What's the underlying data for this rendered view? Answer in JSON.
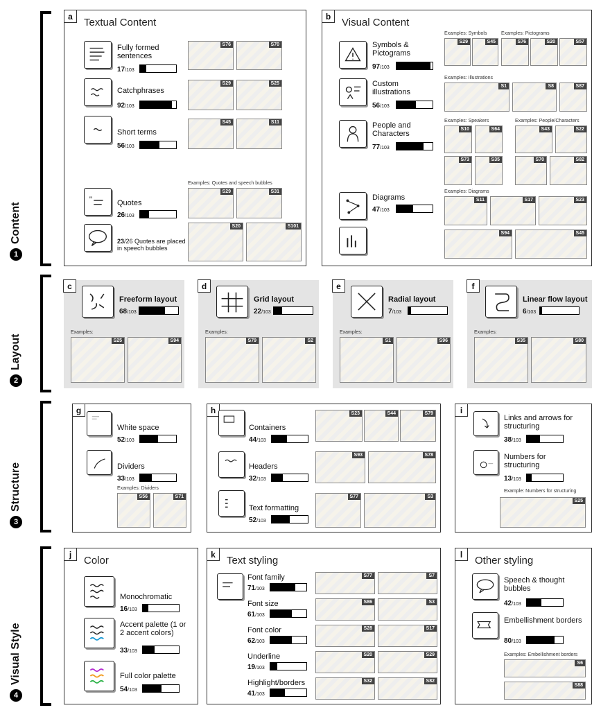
{
  "sections": [
    {
      "num": "1",
      "label": "Content"
    },
    {
      "num": "2",
      "label": "Layout"
    },
    {
      "num": "3",
      "label": "Structure"
    },
    {
      "num": "4",
      "label": "Visual Style"
    }
  ],
  "unit": "/103",
  "panels": {
    "a": {
      "letter": "a",
      "title": "Textual Content",
      "items": [
        {
          "label": "Fully formed sentences",
          "count": "17",
          "value": 17,
          "tags": [
            "S76",
            "S70"
          ]
        },
        {
          "label": "Catchphrases",
          "count": "92",
          "value": 92,
          "tags": [
            "S29",
            "S25"
          ]
        },
        {
          "label": "Short terms",
          "count": "56",
          "value": 56,
          "tags": [
            "S45",
            "S11"
          ]
        },
        {
          "label": "Quotes",
          "count": "26",
          "value": 26,
          "tags": [
            "S29",
            "S31"
          ]
        },
        {
          "label": "",
          "count": "23",
          "value": 23,
          "tags": [
            "S20",
            "S101"
          ]
        }
      ],
      "quotes_example": "Examples: Quotes and speech bubbles",
      "bubble_note": "/26 Quotes are placed in speech bubbles"
    },
    "b": {
      "letter": "b",
      "title": "Visual Content",
      "items": [
        {
          "label": "Symbols & Pictograms",
          "count": "97",
          "value": 97
        },
        {
          "label": "Custom illustrations",
          "count": "56",
          "value": 56
        },
        {
          "label": "People and Characters",
          "count": "77",
          "value": 77
        },
        {
          "label": "Diagrams",
          "count": "47",
          "value": 47
        }
      ],
      "ex_symbols": "Examples: Symbols",
      "ex_pictograms": "Examples: Pictograms",
      "ex_illustrations": "Examples: Illustrations",
      "ex_speakers": "Examples: Speakers",
      "ex_people": "Examples: People/Characters",
      "ex_diagrams": "Examples: Diagrams",
      "tags": [
        "S29",
        "S45",
        "S76",
        "S20",
        "S57",
        "S1",
        "S8",
        "S87",
        "S10",
        "S64",
        "S43",
        "S22",
        "S73",
        "S35",
        "S70",
        "S82",
        "S11",
        "S17",
        "S23",
        "S94",
        "S45"
      ]
    },
    "c": {
      "letter": "c",
      "title": "Freeform layout",
      "count": "68",
      "value": 68,
      "ex": "Examples:",
      "tags": [
        "S25",
        "S94"
      ]
    },
    "d": {
      "letter": "d",
      "title": "Grid layout",
      "count": "22",
      "value": 22,
      "ex": "Examples:",
      "tags": [
        "S79",
        "S2"
      ]
    },
    "e": {
      "letter": "e",
      "title": "Radial layout",
      "count": "7",
      "value": 7,
      "ex": "Examples:",
      "tags": [
        "S1",
        "S96"
      ]
    },
    "f": {
      "letter": "f",
      "title": "Linear flow layout",
      "count": "6",
      "value": 6,
      "ex": "Examples:",
      "tags": [
        "S35",
        "S80"
      ]
    },
    "g": {
      "letter": "g",
      "items": [
        {
          "label": "White space",
          "count": "52",
          "value": 52
        },
        {
          "label": "Dividers",
          "count": "33",
          "value": 33
        }
      ],
      "ex": "Examples: Dividers",
      "tags": [
        "S56",
        "S71"
      ]
    },
    "h": {
      "letter": "h",
      "items": [
        {
          "label": "Containers",
          "count": "44",
          "value": 44,
          "tags": [
            "S23",
            "S44",
            "S79"
          ]
        },
        {
          "label": "Headers",
          "count": "32",
          "value": 32,
          "tags": [
            "S93",
            "S78"
          ]
        },
        {
          "label": "Text formatting",
          "count": "52",
          "value": 52,
          "tags": [
            "S77",
            "S3"
          ]
        }
      ]
    },
    "i": {
      "letter": "i",
      "items": [
        {
          "label": "Links and arrows for structuring",
          "count": "38",
          "value": 38
        },
        {
          "label": "Numbers for structuring",
          "count": "13",
          "value": 13
        }
      ],
      "ex": "Example: Numbers for structuring",
      "tags": [
        "S25"
      ]
    },
    "j": {
      "letter": "j",
      "title": "Color",
      "items": [
        {
          "label": "Monochromatic",
          "count": "16",
          "value": 16
        },
        {
          "label": "Accent palette (1 or 2 accent colors)",
          "count": "33",
          "value": 33
        },
        {
          "label": "Full color palette",
          "count": "54",
          "value": 54
        }
      ]
    },
    "k": {
      "letter": "k",
      "title": "Text styling",
      "items": [
        {
          "label": "Font family",
          "count": "71",
          "value": 71,
          "tags": [
            "S77",
            "S7"
          ]
        },
        {
          "label": "Font size",
          "count": "61",
          "value": 61,
          "tags": [
            "S86",
            "S3"
          ]
        },
        {
          "label": "Font color",
          "count": "62",
          "value": 62,
          "tags": [
            "S28",
            "S17"
          ]
        },
        {
          "label": "Underline",
          "count": "19",
          "value": 19,
          "tags": [
            "S20",
            "S29"
          ]
        },
        {
          "label": "Highlight/borders",
          "count": "41",
          "value": 41,
          "tags": [
            "S32",
            "S82"
          ]
        }
      ]
    },
    "l": {
      "letter": "l",
      "title": "Other styling",
      "items": [
        {
          "label": "Speech & thought bubbles",
          "count": "42",
          "value": 42
        },
        {
          "label": "Embellishment borders",
          "count": "80",
          "value": 80
        }
      ],
      "ex": "Examples: Embellishment borders",
      "tags": [
        "S6",
        "S88"
      ]
    }
  },
  "colors": {
    "bar_fill": "#000000",
    "grey_panel": "#e4e4e4"
  }
}
